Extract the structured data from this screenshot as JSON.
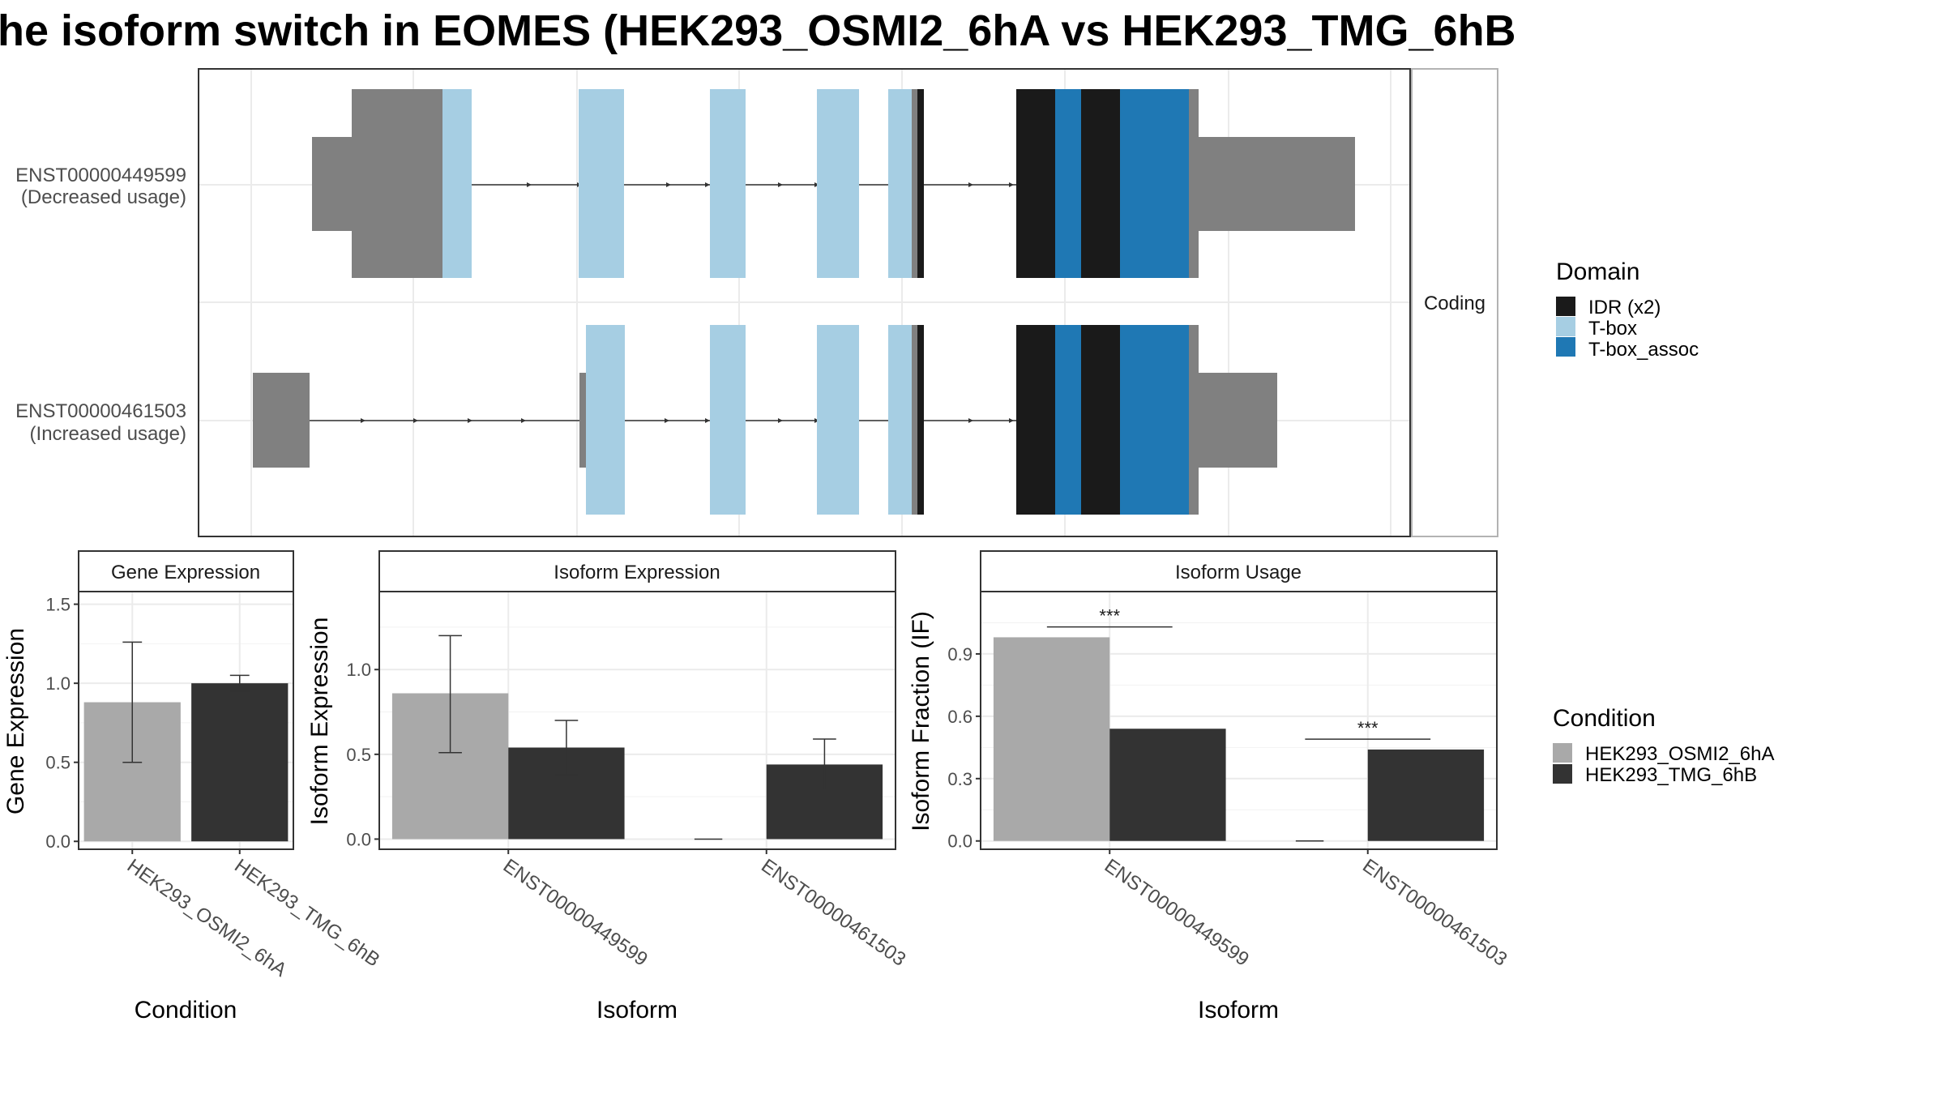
{
  "title": "he isoform switch in EOMES (HEK293_OSMI2_6hA vs HEK293_TMG_6hB",
  "transcripts": {
    "strip_label": "Coding",
    "isoforms": [
      {
        "id": "ENST00000449599",
        "usage_label": "(Decreased usage)"
      },
      {
        "id": "ENST00000461503",
        "usage_label": "(Increased usage)"
      }
    ]
  },
  "domain_legend": {
    "title": "Domain",
    "items": [
      {
        "label": "IDR (x2)",
        "color": "#1a1a1a"
      },
      {
        "label": "T-box",
        "color": "#a6cee3"
      },
      {
        "label": "T-box_assoc",
        "color": "#1f78b4"
      }
    ]
  },
  "condition_legend": {
    "title": "Condition",
    "items": [
      {
        "label": "HEK293_OSMI2_6hA",
        "color": "#a9a9a9"
      },
      {
        "label": "HEK293_TMG_6hB",
        "color": "#333333"
      }
    ]
  },
  "chart_data": [
    {
      "type": "bar",
      "title": "Gene Expression",
      "xlabel": "Condition",
      "ylabel": "Gene Expression",
      "categories": [
        "HEK293_OSMI2_6hA",
        "HEK293_TMG_6hB"
      ],
      "values": [
        0.88,
        1.0
      ],
      "error_low": [
        0.5,
        0.95
      ],
      "error_high": [
        1.26,
        1.05
      ],
      "colors": [
        "#a9a9a9",
        "#333333"
      ],
      "ylim": [
        -0.05,
        1.58
      ],
      "yticks": [
        0.0,
        0.5,
        1.0,
        1.5
      ],
      "ytick_labels": [
        "0.0",
        "0.5",
        "1.0",
        "1.5"
      ]
    },
    {
      "type": "bar",
      "title": "Isoform Expression",
      "xlabel": "Isoform",
      "ylabel": "Isoform Expression",
      "categories": [
        "ENST00000449599",
        "ENST00000461503"
      ],
      "series": [
        {
          "name": "HEK293_OSMI2_6hA",
          "color": "#a9a9a9",
          "values": [
            0.86,
            0.0
          ],
          "error_low": [
            0.51,
            0.0
          ],
          "error_high": [
            1.2,
            0.0
          ]
        },
        {
          "name": "HEK293_TMG_6hB",
          "color": "#333333",
          "values": [
            0.54,
            0.44
          ],
          "error_low": [
            0.38,
            0.29
          ],
          "error_high": [
            0.7,
            0.59
          ]
        }
      ],
      "ylim": [
        -0.06,
        1.46
      ],
      "yticks": [
        0.0,
        0.5,
        1.0
      ],
      "ytick_labels": [
        "0.0",
        "0.5",
        "1.0"
      ]
    },
    {
      "type": "bar",
      "title": "Isoform Usage",
      "xlabel": "Isoform",
      "ylabel": "Isoform Fraction (IF)",
      "categories": [
        "ENST00000449599",
        "ENST00000461503"
      ],
      "series": [
        {
          "name": "HEK293_OSMI2_6hA",
          "color": "#a9a9a9",
          "values": [
            0.98,
            0.0
          ]
        },
        {
          "name": "HEK293_TMG_6hB",
          "color": "#333333",
          "values": [
            0.54,
            0.44
          ]
        }
      ],
      "significance": [
        "***",
        "***"
      ],
      "significance_y": [
        1.03,
        0.49
      ],
      "ylim": [
        -0.04,
        1.2
      ],
      "yticks": [
        0.0,
        0.3,
        0.6,
        0.9
      ],
      "ytick_labels": [
        "0.0",
        "0.3",
        "0.6",
        "0.9"
      ]
    }
  ]
}
